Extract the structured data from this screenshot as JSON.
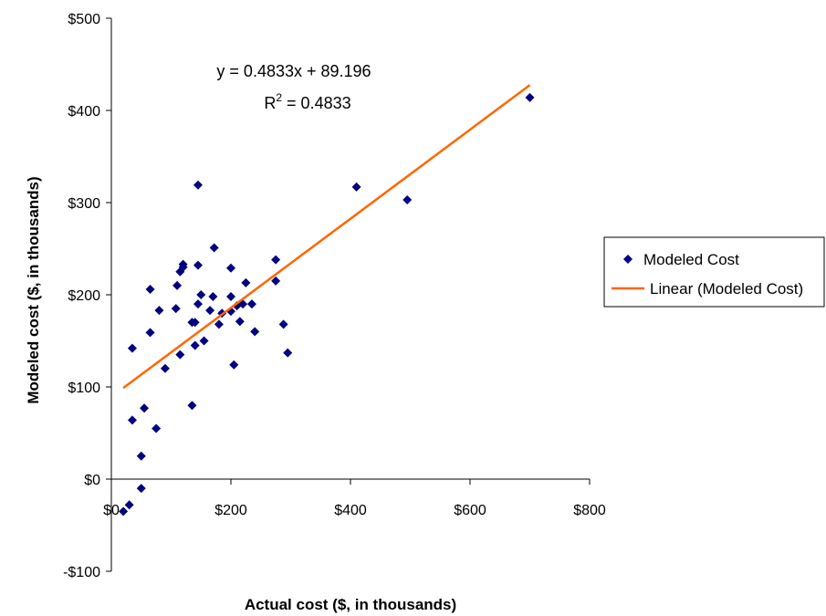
{
  "chart_data": {
    "type": "scatter",
    "xlabel": "Actual cost ($, in thousands)",
    "ylabel": "Modeled cost ($, in thousands)",
    "xlim": [
      0,
      800
    ],
    "ylim": [
      -100,
      500
    ],
    "xticks": [
      0,
      200,
      400,
      600,
      800
    ],
    "xtick_labels": [
      "$0",
      "$200",
      "$400",
      "$600",
      "$800"
    ],
    "yticks": [
      -100,
      0,
      100,
      200,
      300,
      400,
      500
    ],
    "ytick_labels": [
      "-$100",
      "$0",
      "$100",
      "$200",
      "$300",
      "$400",
      "$500"
    ],
    "grid": false,
    "legend_position": "right",
    "colors": {
      "points": "#000080",
      "trendline": "#ff6600"
    },
    "series": [
      {
        "name": "Modeled Cost",
        "type": "scatter",
        "marker": "diamond",
        "points": [
          [
            20,
            -35
          ],
          [
            30,
            -28
          ],
          [
            50,
            -10
          ],
          [
            50,
            25
          ],
          [
            35,
            64
          ],
          [
            55,
            77
          ],
          [
            75,
            55
          ],
          [
            35,
            142
          ],
          [
            65,
            159
          ],
          [
            80,
            183
          ],
          [
            90,
            120
          ],
          [
            65,
            206
          ],
          [
            108,
            185
          ],
          [
            110,
            210
          ],
          [
            115,
            135
          ],
          [
            115,
            225
          ],
          [
            120,
            230
          ],
          [
            120,
            233
          ],
          [
            135,
            80
          ],
          [
            135,
            170
          ],
          [
            140,
            145
          ],
          [
            140,
            170
          ],
          [
            145,
            190
          ],
          [
            145,
            232
          ],
          [
            145,
            319
          ],
          [
            150,
            200
          ],
          [
            155,
            150
          ],
          [
            165,
            183
          ],
          [
            170,
            198
          ],
          [
            172,
            251
          ],
          [
            180,
            168
          ],
          [
            185,
            180
          ],
          [
            200,
            182
          ],
          [
            200,
            198
          ],
          [
            200,
            229
          ],
          [
            205,
            124
          ],
          [
            210,
            188
          ],
          [
            215,
            171
          ],
          [
            220,
            190
          ],
          [
            225,
            213
          ],
          [
            235,
            190
          ],
          [
            240,
            160
          ],
          [
            275,
            238
          ],
          [
            275,
            215
          ],
          [
            288,
            168
          ],
          [
            295,
            137
          ],
          [
            410,
            317
          ],
          [
            495,
            303
          ],
          [
            700,
            414
          ]
        ]
      },
      {
        "name": "Linear (Modeled Cost)",
        "type": "line",
        "slope": 0.4833,
        "intercept": 89.196,
        "x_range": [
          20,
          700
        ]
      }
    ],
    "annotations": {
      "equation": "y = 0.4833x + 89.196",
      "r2_prefix": "R",
      "r2_sup": "2",
      "r2_suffix": " = 0.4833"
    }
  }
}
